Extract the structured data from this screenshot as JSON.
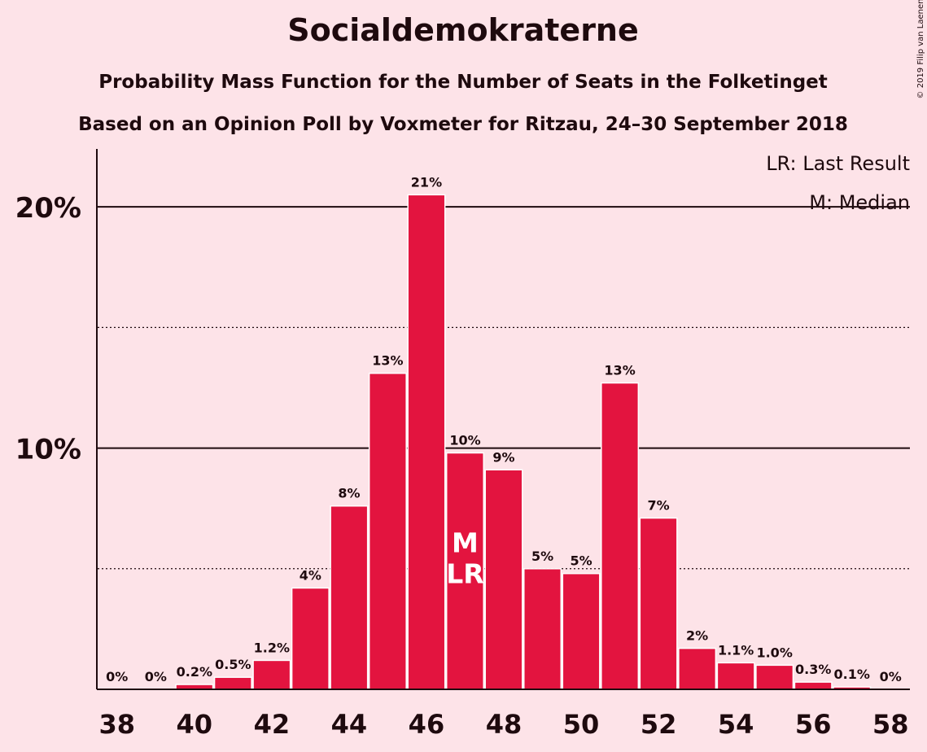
{
  "chart_data": {
    "type": "bar",
    "title": "Socialdemokraterne",
    "subtitle": "Probability Mass Function for the Number of Seats in the Folketinget",
    "subtitle2": "Based on an Opinion Poll by Voxmeter for Ritzau, 24–30 September 2018",
    "credit": "© 2019 Filip van Laenen",
    "x": [
      38,
      39,
      40,
      41,
      42,
      43,
      44,
      45,
      46,
      47,
      48,
      49,
      50,
      51,
      52,
      53,
      54,
      55,
      56,
      57,
      58
    ],
    "values": [
      0,
      0,
      0.2,
      0.5,
      1.2,
      4.2,
      7.6,
      13.1,
      20.5,
      9.8,
      9.1,
      5.0,
      4.8,
      12.7,
      7.1,
      1.7,
      1.1,
      1.0,
      0.3,
      0.1,
      0
    ],
    "value_labels": [
      "0%",
      "0%",
      "0.2%",
      "0.5%",
      "1.2%",
      "4%",
      "8%",
      "13%",
      "21%",
      "10%",
      "9%",
      "5%",
      "5%",
      "13%",
      "7%",
      "2%",
      "1.1%",
      "1.0%",
      "0.3%",
      "0.1%",
      "0%"
    ],
    "color": "#e3143f",
    "xlim": [
      37.5,
      58.5
    ],
    "xticks": [
      38,
      40,
      42,
      44,
      46,
      48,
      50,
      52,
      54,
      56,
      58
    ],
    "ylim": [
      0,
      22.4
    ],
    "yticks": [
      {
        "value": 10,
        "label": "10%"
      },
      {
        "value": 20,
        "label": "20%"
      }
    ],
    "minor_gridlines": [
      5,
      15
    ],
    "grid": true,
    "annotations": [
      {
        "x": 47,
        "label": "M"
      },
      {
        "x": 47,
        "label": "LR"
      }
    ],
    "legend": [
      "LR: Last Result",
      "M: Median"
    ]
  }
}
